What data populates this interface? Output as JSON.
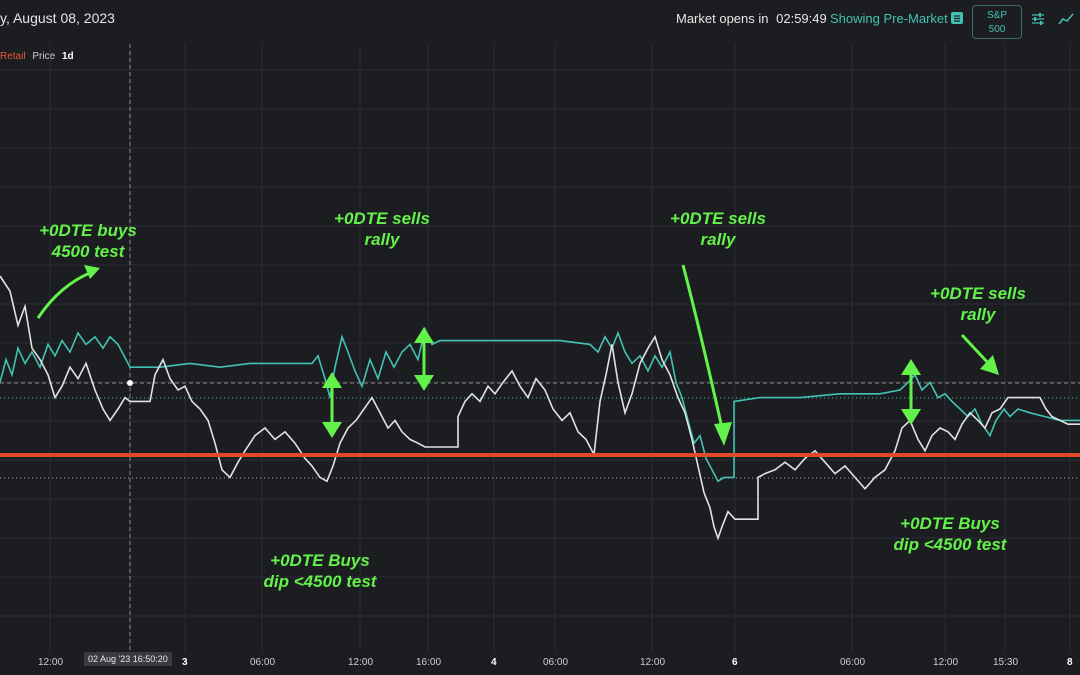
{
  "header": {
    "date_text": "y, August 08, 2023",
    "market_label": "Market opens in",
    "countdown": "02:59:49",
    "premarket_label": "Showing Pre-Market",
    "index_label_line1": "S&P",
    "index_label_line2": "500"
  },
  "legend": {
    "retail": "Retail",
    "price": "Price",
    "timeframe": "1d"
  },
  "icons": [
    "list-icon",
    "sliders-icon",
    "line-chart-icon"
  ],
  "colors": {
    "background": "#1c1d21",
    "price_line": "#e2e2e2",
    "retail_line": "#42c2b4",
    "level_line": "#e04a2a",
    "annotation": "#62f24a"
  },
  "crosshair_label": "02 Aug '23  16:50:20",
  "annotations": [
    {
      "line1": "+0DTE buys",
      "line2": "4500 test"
    },
    {
      "line1": "+0DTE sells",
      "line2": "rally"
    },
    {
      "line1": "+0DTE sells",
      "line2": "rally"
    },
    {
      "line1": "+0DTE sells",
      "line2": "rally"
    },
    {
      "line1": "+0DTE Buys",
      "line2": "dip <4500 test"
    },
    {
      "line1": "+0DTE Buys",
      "line2": "dip <4500 test"
    }
  ],
  "chart_data": {
    "type": "line",
    "title": "",
    "xlabel": "",
    "ylabel": "",
    "x_tick_labels": [
      "12:00",
      "3",
      "06:00",
      "12:00",
      "16:00",
      "4",
      "06:00",
      "12:00",
      "6",
      "06:00",
      "12:00",
      "15:30",
      "8"
    ],
    "x_tick_bold": [
      "3",
      "4",
      "6",
      "8"
    ],
    "grid": true,
    "horizontal_level": "4500",
    "series": [
      {
        "key": "price",
        "points": [
          [
            0,
            0.2
          ],
          [
            10,
            0.24
          ],
          [
            18,
            0.33
          ],
          [
            25,
            0.28
          ],
          [
            32,
            0.39
          ],
          [
            40,
            0.42
          ],
          [
            48,
            0.46
          ],
          [
            55,
            0.52
          ],
          [
            62,
            0.49
          ],
          [
            70,
            0.44
          ],
          [
            78,
            0.47
          ],
          [
            86,
            0.43
          ],
          [
            95,
            0.5
          ],
          [
            103,
            0.55
          ],
          [
            110,
            0.58
          ],
          [
            118,
            0.55
          ],
          [
            125,
            0.52
          ],
          [
            130,
            0.53
          ],
          [
            150,
            0.53
          ],
          [
            155,
            0.46
          ],
          [
            163,
            0.42
          ],
          [
            170,
            0.47
          ],
          [
            178,
            0.5
          ],
          [
            185,
            0.49
          ],
          [
            192,
            0.53
          ],
          [
            200,
            0.55
          ],
          [
            208,
            0.58
          ],
          [
            215,
            0.64
          ],
          [
            222,
            0.71
          ],
          [
            230,
            0.73
          ],
          [
            238,
            0.69
          ],
          [
            245,
            0.66
          ],
          [
            255,
            0.62
          ],
          [
            265,
            0.6
          ],
          [
            275,
            0.63
          ],
          [
            285,
            0.61
          ],
          [
            295,
            0.64
          ],
          [
            305,
            0.68
          ],
          [
            312,
            0.7
          ],
          [
            320,
            0.73
          ],
          [
            327,
            0.74
          ],
          [
            333,
            0.7
          ],
          [
            340,
            0.64
          ],
          [
            348,
            0.6
          ],
          [
            356,
            0.58
          ],
          [
            364,
            0.55
          ],
          [
            372,
            0.52
          ],
          [
            380,
            0.56
          ],
          [
            388,
            0.6
          ],
          [
            395,
            0.58
          ],
          [
            402,
            0.61
          ],
          [
            410,
            0.63
          ],
          [
            418,
            0.64
          ],
          [
            425,
            0.65
          ],
          [
            458,
            0.65
          ],
          [
            458,
            0.57
          ],
          [
            465,
            0.53
          ],
          [
            472,
            0.51
          ],
          [
            480,
            0.53
          ],
          [
            488,
            0.49
          ],
          [
            495,
            0.51
          ],
          [
            503,
            0.48
          ],
          [
            512,
            0.45
          ],
          [
            520,
            0.49
          ],
          [
            528,
            0.52
          ],
          [
            536,
            0.47
          ],
          [
            545,
            0.5
          ],
          [
            553,
            0.55
          ],
          [
            562,
            0.58
          ],
          [
            570,
            0.56
          ],
          [
            578,
            0.61
          ],
          [
            586,
            0.63
          ],
          [
            594,
            0.67
          ],
          [
            600,
            0.53
          ],
          [
            606,
            0.46
          ],
          [
            612,
            0.38
          ],
          [
            618,
            0.48
          ],
          [
            625,
            0.56
          ],
          [
            632,
            0.51
          ],
          [
            640,
            0.43
          ],
          [
            648,
            0.39
          ],
          [
            655,
            0.36
          ],
          [
            662,
            0.42
          ],
          [
            670,
            0.46
          ],
          [
            678,
            0.52
          ],
          [
            685,
            0.56
          ],
          [
            692,
            0.63
          ],
          [
            698,
            0.7
          ],
          [
            704,
            0.77
          ],
          [
            710,
            0.81
          ],
          [
            714,
            0.86
          ],
          [
            718,
            0.89
          ],
          [
            722,
            0.86
          ],
          [
            728,
            0.82
          ],
          [
            735,
            0.84
          ],
          [
            758,
            0.84
          ],
          [
            758,
            0.73
          ],
          [
            765,
            0.72
          ],
          [
            775,
            0.71
          ],
          [
            785,
            0.69
          ],
          [
            795,
            0.71
          ],
          [
            805,
            0.68
          ],
          [
            815,
            0.66
          ],
          [
            825,
            0.69
          ],
          [
            835,
            0.72
          ],
          [
            845,
            0.7
          ],
          [
            855,
            0.73
          ],
          [
            865,
            0.76
          ],
          [
            875,
            0.73
          ],
          [
            885,
            0.71
          ],
          [
            895,
            0.66
          ],
          [
            902,
            0.6
          ],
          [
            910,
            0.58
          ],
          [
            918,
            0.63
          ],
          [
            925,
            0.66
          ],
          [
            932,
            0.62
          ],
          [
            940,
            0.6
          ],
          [
            948,
            0.61
          ],
          [
            955,
            0.63
          ],
          [
            962,
            0.59
          ],
          [
            970,
            0.56
          ],
          [
            978,
            0.58
          ],
          [
            985,
            0.6
          ],
          [
            992,
            0.56
          ],
          [
            1000,
            0.55
          ],
          [
            1008,
            0.52
          ],
          [
            1014,
            0.52
          ],
          [
            1040,
            0.52
          ],
          [
            1046,
            0.55
          ],
          [
            1052,
            0.57
          ],
          [
            1060,
            0.58
          ],
          [
            1068,
            0.59
          ],
          [
            1080,
            0.59
          ]
        ]
      },
      {
        "key": "retail",
        "points": [
          [
            0,
            0.48
          ],
          [
            6,
            0.42
          ],
          [
            12,
            0.46
          ],
          [
            18,
            0.39
          ],
          [
            25,
            0.43
          ],
          [
            32,
            0.4
          ],
          [
            40,
            0.44
          ],
          [
            48,
            0.38
          ],
          [
            55,
            0.41
          ],
          [
            62,
            0.37
          ],
          [
            70,
            0.4
          ],
          [
            78,
            0.35
          ],
          [
            86,
            0.38
          ],
          [
            95,
            0.36
          ],
          [
            103,
            0.39
          ],
          [
            110,
            0.36
          ],
          [
            118,
            0.38
          ],
          [
            130,
            0.44
          ],
          [
            160,
            0.44
          ],
          [
            190,
            0.43
          ],
          [
            220,
            0.44
          ],
          [
            250,
            0.43
          ],
          [
            280,
            0.43
          ],
          [
            312,
            0.43
          ],
          [
            318,
            0.41
          ],
          [
            325,
            0.47
          ],
          [
            330,
            0.52
          ],
          [
            335,
            0.44
          ],
          [
            342,
            0.36
          ],
          [
            348,
            0.4
          ],
          [
            355,
            0.45
          ],
          [
            362,
            0.49
          ],
          [
            370,
            0.42
          ],
          [
            378,
            0.47
          ],
          [
            386,
            0.4
          ],
          [
            394,
            0.44
          ],
          [
            402,
            0.4
          ],
          [
            410,
            0.38
          ],
          [
            418,
            0.42
          ],
          [
            425,
            0.34
          ],
          [
            432,
            0.38
          ],
          [
            440,
            0.37
          ],
          [
            480,
            0.37
          ],
          [
            520,
            0.37
          ],
          [
            560,
            0.37
          ],
          [
            590,
            0.38
          ],
          [
            598,
            0.4
          ],
          [
            605,
            0.36
          ],
          [
            612,
            0.39
          ],
          [
            618,
            0.35
          ],
          [
            625,
            0.4
          ],
          [
            632,
            0.43
          ],
          [
            640,
            0.41
          ],
          [
            648,
            0.45
          ],
          [
            655,
            0.41
          ],
          [
            662,
            0.44
          ],
          [
            670,
            0.4
          ],
          [
            676,
            0.48
          ],
          [
            682,
            0.52
          ],
          [
            688,
            0.58
          ],
          [
            694,
            0.64
          ],
          [
            700,
            0.62
          ],
          [
            706,
            0.68
          ],
          [
            712,
            0.71
          ],
          [
            718,
            0.74
          ],
          [
            724,
            0.73
          ],
          [
            734,
            0.73
          ],
          [
            734,
            0.53
          ],
          [
            760,
            0.52
          ],
          [
            800,
            0.52
          ],
          [
            840,
            0.51
          ],
          [
            880,
            0.51
          ],
          [
            900,
            0.5
          ],
          [
            908,
            0.48
          ],
          [
            915,
            0.46
          ],
          [
            922,
            0.5
          ],
          [
            930,
            0.48
          ],
          [
            938,
            0.52
          ],
          [
            945,
            0.51
          ],
          [
            952,
            0.53
          ],
          [
            960,
            0.55
          ],
          [
            968,
            0.57
          ],
          [
            975,
            0.55
          ],
          [
            982,
            0.59
          ],
          [
            990,
            0.62
          ],
          [
            996,
            0.58
          ],
          [
            1004,
            0.55
          ],
          [
            1010,
            0.57
          ],
          [
            1018,
            0.55
          ],
          [
            1030,
            0.56
          ],
          [
            1045,
            0.57
          ],
          [
            1060,
            0.58
          ],
          [
            1080,
            0.58
          ]
        ]
      }
    ]
  }
}
